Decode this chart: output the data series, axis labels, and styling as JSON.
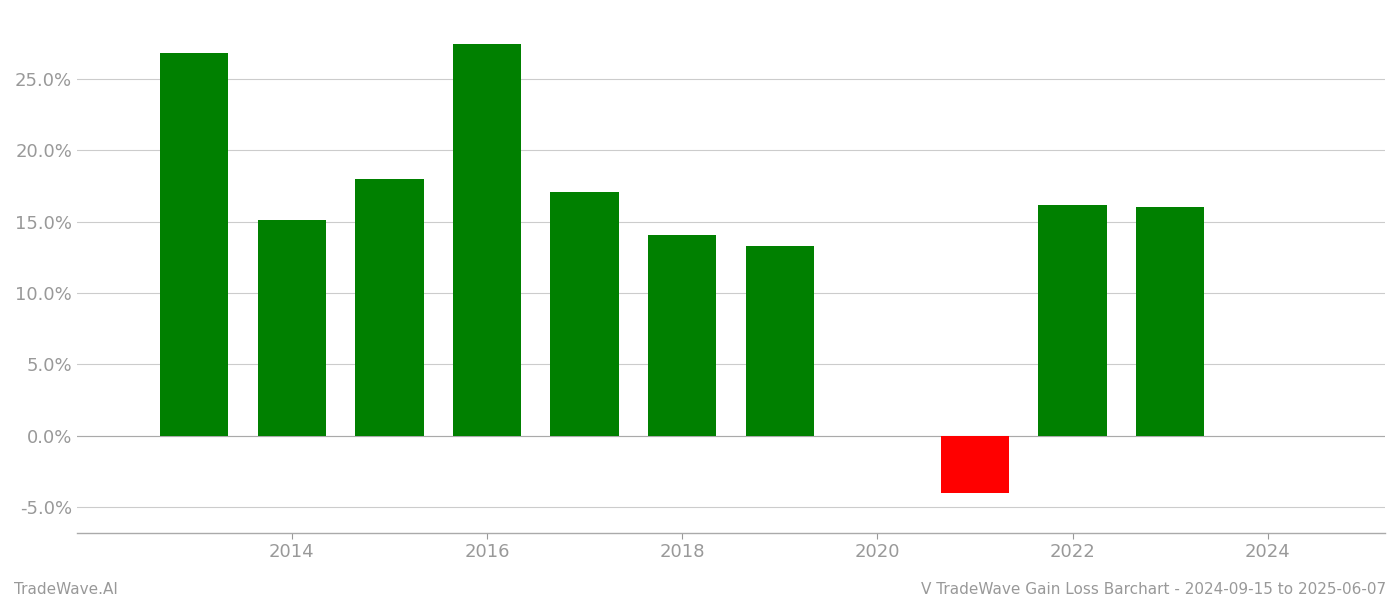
{
  "years": [
    2013,
    2014,
    2015,
    2016,
    2017,
    2018,
    2019,
    2021,
    2022,
    2023
  ],
  "values": [
    0.268,
    0.151,
    0.18,
    0.275,
    0.171,
    0.141,
    0.133,
    -0.04,
    0.162,
    0.16
  ],
  "colors": [
    "#008000",
    "#008000",
    "#008000",
    "#008000",
    "#008000",
    "#008000",
    "#008000",
    "#ff0000",
    "#008000",
    "#008000"
  ],
  "ylim": [
    -0.068,
    0.295
  ],
  "yticks": [
    -0.05,
    0.0,
    0.05,
    0.1,
    0.15,
    0.2,
    0.25
  ],
  "bar_width": 0.7,
  "xlim": [
    2011.8,
    2025.2
  ],
  "xticks": [
    2014,
    2016,
    2018,
    2020,
    2022,
    2024
  ],
  "xtick_labels": [
    "2014",
    "2016",
    "2018",
    "2020",
    "2022",
    "2024"
  ],
  "footer_left": "TradeWave.AI",
  "footer_right": "V TradeWave Gain Loss Barchart - 2024-09-15 to 2025-06-07",
  "background_color": "#ffffff",
  "grid_color": "#cccccc",
  "tick_color": "#999999",
  "spine_color": "#aaaaaa",
  "tick_fontsize": 13,
  "footer_fontsize": 11
}
